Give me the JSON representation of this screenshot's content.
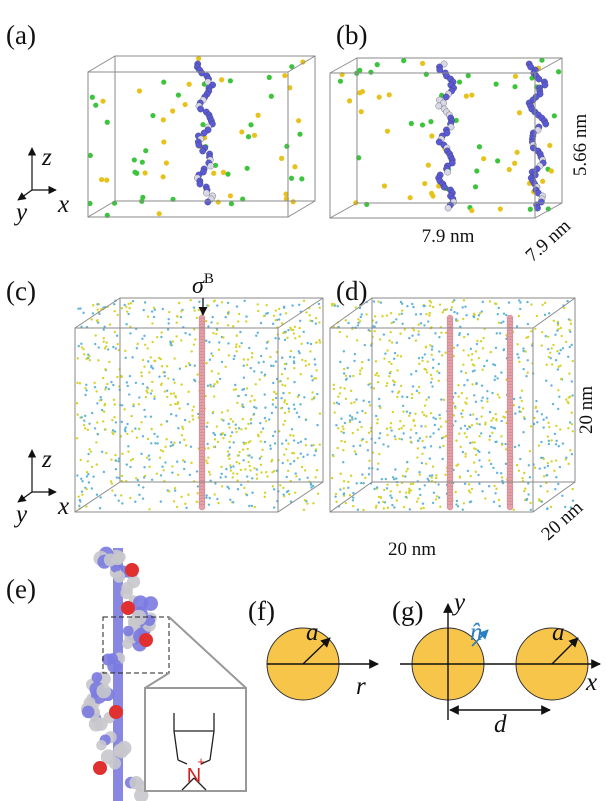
{
  "panels": [
    "(a)",
    "(b)",
    "(c)",
    "(d)",
    "(e)",
    "(f)",
    "(g)"
  ],
  "triads": [
    {
      "z": "z",
      "y": "y",
      "x": "x"
    },
    {
      "z": "z",
      "y": "y",
      "x": "x"
    }
  ],
  "panel_b": {
    "height": "5.66 nm",
    "width": "7.9 nm",
    "depth": "7.9 nm"
  },
  "panel_c": {
    "annotation": "σ",
    "annotation_sup": "B"
  },
  "panel_d": {
    "height": "20 nm",
    "width": "20 nm",
    "depth": "20 nm"
  },
  "panel_e": {
    "atom": "N",
    "charge": "+"
  },
  "panel_f": {
    "radius": "a",
    "axis": "r"
  },
  "panel_g": {
    "y_axis": "y",
    "normal": "n̂",
    "radius": "a",
    "x_axis": "x",
    "separation": "d"
  }
}
